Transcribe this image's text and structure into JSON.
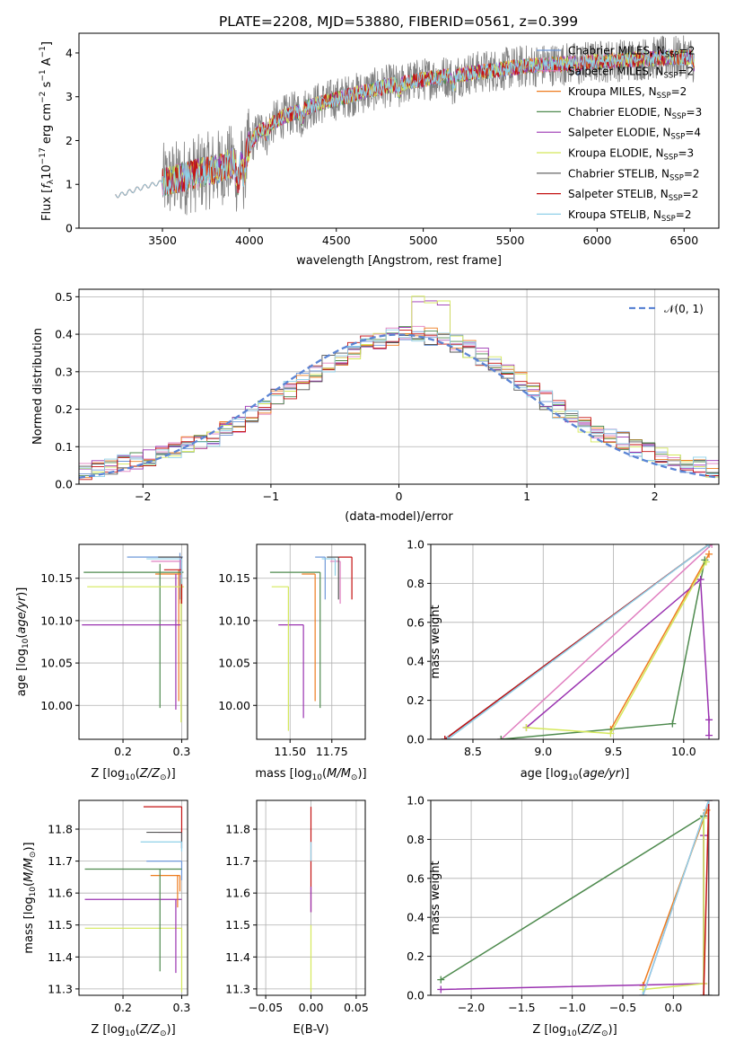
{
  "figure": {
    "title": "PLATE=2208, MJD=53880, FIBERID=0561, z=0.399"
  },
  "colors": {
    "chabrier_miles": "#6f98d8",
    "salpeter_miles": "#e07fc0",
    "kroupa_miles": "#ee7b1e",
    "chabrier_elodie": "#4e8a4e",
    "salpeter_elodie": "#9a32b0",
    "kroupa_elodie": "#d4e85a",
    "chabrier_stelib": "#555555",
    "salpeter_stelib": "#c41212",
    "kroupa_stelib": "#8fd0e8",
    "gauss": "#5b84d4",
    "grid": "#b0b0b0",
    "spectrum": "#808080"
  },
  "chart_data": [
    {
      "type": "line",
      "panel": "spectrum",
      "xlabel": "wavelength [Angstrom, rest frame]",
      "ylabel": "Flux [f_λ 10^-17 erg cm^-2 s^-1 A^-1]",
      "xlim": [
        3020,
        6700
      ],
      "ylim": [
        0,
        4.45
      ],
      "xticks": [
        3500,
        4000,
        4500,
        5000,
        5500,
        6000,
        6500
      ],
      "yticks": [
        0,
        1,
        2,
        3,
        4
      ],
      "grid": false,
      "legend_position": "top-right",
      "series": [
        {
          "name": "Chabrier MILES, N_SSP=2",
          "key": "chabrier_miles"
        },
        {
          "name": "Salpeter MILES, N_SSP=2",
          "key": "salpeter_miles"
        },
        {
          "name": "Kroupa MILES, N_SSP=2",
          "key": "kroupa_miles"
        },
        {
          "name": "Chabrier ELODIE, N_SSP=3",
          "key": "chabrier_elodie"
        },
        {
          "name": "Salpeter ELODIE, N_SSP=4",
          "key": "salpeter_elodie"
        },
        {
          "name": "Kroupa ELODIE, N_SSP=3",
          "key": "kroupa_elodie"
        },
        {
          "name": "Chabrier STELIB, N_SSP=2",
          "key": "chabrier_stelib"
        },
        {
          "name": "Salpeter STELIB, N_SSP=2",
          "key": "salpeter_stelib"
        },
        {
          "name": "Kroupa STELIB, N_SSP=2",
          "key": "kroupa_stelib"
        }
      ],
      "continuum": {
        "x": [
          3250,
          3400,
          3600,
          3800,
          3950,
          4050,
          4200,
          4400,
          4600,
          4800,
          5000,
          5200,
          5400,
          5600,
          5800,
          6000,
          6200,
          6400,
          6550
        ],
        "y": [
          0.75,
          0.95,
          1.15,
          1.35,
          1.55,
          2.2,
          2.55,
          2.85,
          3.05,
          3.25,
          3.4,
          3.5,
          3.6,
          3.7,
          3.75,
          3.8,
          3.85,
          3.9,
          3.9
        ]
      }
    },
    {
      "type": "step",
      "panel": "residuals",
      "xlabel": "(data-model)/error",
      "ylabel": "Normed distribution",
      "xlim": [
        -2.5,
        2.5
      ],
      "ylim": [
        0,
        0.52
      ],
      "xticks": [
        -2,
        -1,
        0,
        1,
        2
      ],
      "yticks": [
        0.0,
        0.1,
        0.2,
        0.3,
        0.4,
        0.5
      ],
      "grid": true,
      "legend_position": "top-right",
      "gauss_label": "𝒩(0, 1)",
      "bin_width": 0.1
    },
    {
      "type": "scatter",
      "panel": "age_vs_Z",
      "xlabel": "Z [log10(Z/Z⊙)]",
      "ylabel": "age [log10(age/yr)]",
      "xlim": [
        0.125,
        0.31
      ],
      "ylim": [
        9.96,
        10.19
      ],
      "xticks": [
        0.2,
        0.3
      ],
      "yticks": [
        10.0,
        10.05,
        10.1,
        10.15
      ],
      "grid": true,
      "points": [
        {
          "key": "chabrier_miles",
          "x": 0.297,
          "y": 10.175,
          "xerr": [
            0.09,
            0.005
          ],
          "yerr": [
            0.05,
            0.005
          ]
        },
        {
          "key": "salpeter_miles",
          "x": 0.298,
          "y": 10.17,
          "xerr": [
            0.05,
            0.003
          ],
          "yerr": [
            0.05,
            0.005
          ]
        },
        {
          "key": "kroupa_miles",
          "x": 0.295,
          "y": 10.155,
          "xerr": [
            0.04,
            0.005
          ],
          "yerr": [
            0.15,
            0.005
          ]
        },
        {
          "key": "chabrier_elodie",
          "x": 0.263,
          "y": 10.157,
          "xerr": [
            0.13,
            0.04
          ],
          "yerr": [
            0.16,
            0.01
          ]
        },
        {
          "key": "salpeter_elodie",
          "x": 0.29,
          "y": 10.095,
          "xerr": [
            0.16,
            0.01
          ],
          "yerr": [
            0.1,
            0.06
          ]
        },
        {
          "key": "kroupa_elodie",
          "x": 0.299,
          "y": 10.14,
          "xerr": [
            0.16,
            0.005
          ],
          "yerr": [
            0.16,
            0.01
          ]
        },
        {
          "key": "chabrier_stelib",
          "x": 0.3,
          "y": 10.175,
          "xerr": [
            0.04,
            0.0
          ],
          "yerr": [
            0.05,
            0.0
          ]
        },
        {
          "key": "salpeter_stelib",
          "x": 0.3,
          "y": 10.16,
          "xerr": [
            0.03,
            0.0
          ],
          "yerr": [
            0.04,
            0.0
          ]
        },
        {
          "key": "kroupa_stelib",
          "x": 0.3,
          "y": 10.173,
          "xerr": [
            0.06,
            0.0
          ],
          "yerr": [
            0.03,
            0.0
          ]
        }
      ]
    },
    {
      "type": "scatter",
      "panel": "age_vs_mass",
      "xlabel": "mass [log10(M/M⊙)]",
      "ylabel": "",
      "xlim": [
        11.3,
        11.95
      ],
      "ylim": [
        9.96,
        10.19
      ],
      "xticks": [
        11.5,
        11.75
      ],
      "yticks": [
        10.0,
        10.05,
        10.1,
        10.15
      ],
      "grid": true,
      "points": [
        {
          "key": "chabrier_miles",
          "x": 11.71,
          "y": 10.175,
          "xerr": [
            0.06,
            0.0
          ],
          "yerr": [
            0.05,
            0.0
          ]
        },
        {
          "key": "salpeter_miles",
          "x": 11.8,
          "y": 10.17,
          "xerr": [
            0.06,
            0.0
          ],
          "yerr": [
            0.05,
            0.0
          ]
        },
        {
          "key": "kroupa_miles",
          "x": 11.65,
          "y": 10.155,
          "xerr": [
            0.08,
            0.0
          ],
          "yerr": [
            0.15,
            0.0
          ]
        },
        {
          "key": "chabrier_elodie",
          "x": 11.68,
          "y": 10.157,
          "xerr": [
            0.3,
            0.0
          ],
          "yerr": [
            0.16,
            0.0
          ]
        },
        {
          "key": "salpeter_elodie",
          "x": 11.58,
          "y": 10.095,
          "xerr": [
            0.15,
            0.0
          ],
          "yerr": [
            0.11,
            0.0
          ]
        },
        {
          "key": "kroupa_elodie",
          "x": 11.49,
          "y": 10.14,
          "xerr": [
            0.1,
            0.0
          ],
          "yerr": [
            0.17,
            0.0
          ]
        },
        {
          "key": "chabrier_stelib",
          "x": 11.79,
          "y": 10.175,
          "xerr": [
            0.07,
            0.0
          ],
          "yerr": [
            0.05,
            0.0
          ]
        },
        {
          "key": "salpeter_stelib",
          "x": 11.87,
          "y": 10.175,
          "xerr": [
            0.08,
            0.0
          ],
          "yerr": [
            0.05,
            0.0
          ]
        },
        {
          "key": "kroupa_stelib",
          "x": 11.77,
          "y": 10.173,
          "xerr": [
            0.08,
            0.0
          ],
          "yerr": [
            0.02,
            0.0
          ]
        }
      ]
    },
    {
      "type": "line",
      "panel": "massweight_vs_age",
      "xlabel": "age [log10(age/yr)]",
      "ylabel": "mass weight",
      "xlim": [
        8.2,
        10.25
      ],
      "ylim": [
        0,
        1.0
      ],
      "xticks": [
        8.5,
        9.0,
        9.5,
        10.0
      ],
      "yticks": [
        0.0,
        0.2,
        0.4,
        0.6,
        0.8,
        1.0
      ],
      "grid": true,
      "series": [
        {
          "key": "chabrier_miles",
          "x": [
            8.3,
            10.18
          ],
          "y": [
            0.0,
            1.0
          ]
        },
        {
          "key": "salpeter_miles",
          "x": [
            8.7,
            10.2
          ],
          "y": [
            0.0,
            1.0
          ]
        },
        {
          "key": "kroupa_miles",
          "x": [
            9.48,
            10.18
          ],
          "y": [
            0.05,
            0.95
          ]
        },
        {
          "key": "chabrier_elodie",
          "x": [
            8.7,
            9.92,
            10.15
          ],
          "y": [
            0.0,
            0.08,
            0.92
          ]
        },
        {
          "key": "salpeter_elodie",
          "x": [
            8.88,
            10.12,
            10.18,
            10.18
          ],
          "y": [
            0.06,
            0.82,
            0.1,
            0.02
          ]
        },
        {
          "key": "kroupa_elodie",
          "x": [
            8.88,
            9.48,
            10.16
          ],
          "y": [
            0.06,
            0.03,
            0.91
          ]
        },
        {
          "key": "chabrier_stelib",
          "x": [
            8.3,
            10.18
          ],
          "y": [
            0.0,
            1.0
          ]
        },
        {
          "key": "salpeter_stelib",
          "x": [
            8.3,
            10.18
          ],
          "y": [
            0.0,
            1.0
          ]
        },
        {
          "key": "kroupa_stelib",
          "x": [
            8.32,
            10.18
          ],
          "y": [
            0.0,
            1.0
          ]
        }
      ]
    },
    {
      "type": "scatter",
      "panel": "mass_vs_Z",
      "xlabel": "Z [log10(Z/Z⊙)]",
      "ylabel": "mass [log10(M/M⊙)]",
      "xlim": [
        0.125,
        0.31
      ],
      "ylim": [
        11.28,
        11.89
      ],
      "xticks": [
        0.2,
        0.3
      ],
      "yticks": [
        11.3,
        11.4,
        11.5,
        11.6,
        11.7,
        11.8
      ],
      "grid": true,
      "points": [
        {
          "key": "chabrier_miles",
          "x": 0.3,
          "y": 11.7,
          "xerr": [
            0.06,
            0.0
          ],
          "yerr": [
            0.06,
            0.0
          ]
        },
        {
          "key": "salpeter_miles",
          "x": 0.3,
          "y": 11.79,
          "xerr": [
            0.04,
            0.0
          ],
          "yerr": [
            0.05,
            0.0
          ]
        },
        {
          "key": "kroupa_miles",
          "x": 0.297,
          "y": 11.655,
          "xerr": [
            0.05,
            0.0
          ],
          "yerr": [
            0.05,
            0.0
          ]
        },
        {
          "key": "chabrier_elodie",
          "x": 0.3,
          "y": 11.675,
          "xerr": [
            0.165,
            0.0
          ],
          "yerr": [
            0.0,
            0.0
          ]
        },
        {
          "key": "salpeter_elodie",
          "x": 0.3,
          "y": 11.58,
          "xerr": [
            0.165,
            0.0
          ],
          "yerr": [
            0.0,
            0.0
          ]
        },
        {
          "key": "kroupa_elodie",
          "x": 0.3,
          "y": 11.49,
          "xerr": [
            0.165,
            0.0
          ],
          "yerr": [
            0.2,
            0.0
          ]
        },
        {
          "key": "chabrier_stelib",
          "x": 0.3,
          "y": 11.79,
          "xerr": [
            0.06,
            0.0
          ],
          "yerr": [
            0.05,
            0.0
          ]
        },
        {
          "key": "salpeter_stelib",
          "x": 0.3,
          "y": 11.87,
          "xerr": [
            0.065,
            0.0
          ],
          "yerr": [
            0.08,
            0.0
          ]
        },
        {
          "key": "kroupa_stelib",
          "x": 0.3,
          "y": 11.76,
          "xerr": [
            0.07,
            0.0
          ],
          "yerr": [
            0.03,
            0.0
          ]
        },
        {
          "key": "chabrier_elodie",
          "x": 0.263,
          "y": 11.675,
          "xerr": [
            0.0,
            0.0
          ],
          "yerr": [
            0.32,
            0.0
          ]
        },
        {
          "key": "salpeter_elodie",
          "x": 0.29,
          "y": 11.58,
          "xerr": [
            0.0,
            0.0
          ],
          "yerr": [
            0.23,
            0.0
          ]
        },
        {
          "key": "kroupa_miles",
          "x": 0.293,
          "y": 11.655,
          "xerr": [
            0.0,
            0.0
          ],
          "yerr": [
            0.1,
            0.0
          ]
        }
      ]
    },
    {
      "type": "scatter",
      "panel": "mass_vs_EBV",
      "xlabel": "E(B-V)",
      "ylabel": "",
      "xlim": [
        -0.06,
        0.06
      ],
      "ylim": [
        11.28,
        11.89
      ],
      "xticks": [
        -0.05,
        0.0,
        0.05
      ],
      "yticks": [
        11.3,
        11.4,
        11.5,
        11.6,
        11.7,
        11.8
      ],
      "grid": true,
      "points": [
        {
          "key": "salpeter_stelib",
          "x": 0.0,
          "y": 11.7,
          "yerr": [
            0.16,
            0.17
          ]
        },
        {
          "key": "kroupa_stelib",
          "x": 0.0,
          "y": 11.73,
          "yerr": [
            0.03,
            0.03
          ]
        },
        {
          "key": "salpeter_elodie",
          "x": 0.0,
          "y": 11.58,
          "yerr": [
            0.04,
            0.04
          ]
        },
        {
          "key": "kroupa_elodie",
          "x": 0.0,
          "y": 11.4,
          "yerr": [
            0.11,
            0.1
          ]
        }
      ]
    },
    {
      "type": "line",
      "panel": "massweight_vs_Z",
      "xlabel": "Z [log10(Z/Z⊙)]",
      "ylabel": "mass weight",
      "xlim": [
        -2.4,
        0.45
      ],
      "ylim": [
        0,
        1.0
      ],
      "xticks": [
        -2.0,
        -1.5,
        -1.0,
        -0.5,
        0.0
      ],
      "yticks": [
        0.0,
        0.2,
        0.4,
        0.6,
        0.8,
        1.0
      ],
      "grid": true,
      "series": [
        {
          "key": "chabrier_miles",
          "x": [
            -0.3,
            0.35
          ],
          "y": [
            0.0,
            1.0
          ]
        },
        {
          "key": "salpeter_miles",
          "x": [
            -0.3,
            0.35
          ],
          "y": [
            0.0,
            1.0
          ]
        },
        {
          "key": "kroupa_miles",
          "x": [
            -0.3,
            0.33
          ],
          "y": [
            0.05,
            0.95
          ]
        },
        {
          "key": "chabrier_elodie",
          "x": [
            -2.3,
            0.3,
            0.3
          ],
          "y": [
            0.08,
            0.92,
            0.0
          ]
        },
        {
          "key": "salpeter_elodie",
          "x": [
            -2.3,
            0.3,
            0.3
          ],
          "y": [
            0.03,
            0.06,
            0.82
          ]
        },
        {
          "key": "kroupa_elodie",
          "x": [
            -0.3,
            0.3,
            0.3
          ],
          "y": [
            0.03,
            0.06,
            0.91
          ]
        },
        {
          "key": "chabrier_stelib",
          "x": [
            0.35,
            0.35
          ],
          "y": [
            0.0,
            1.0
          ]
        },
        {
          "key": "salpeter_stelib",
          "x": [
            0.3,
            0.35
          ],
          "y": [
            0.0,
            1.0
          ]
        },
        {
          "key": "kroupa_stelib",
          "x": [
            -0.3,
            0.35
          ],
          "y": [
            0.0,
            1.0
          ]
        }
      ]
    }
  ]
}
